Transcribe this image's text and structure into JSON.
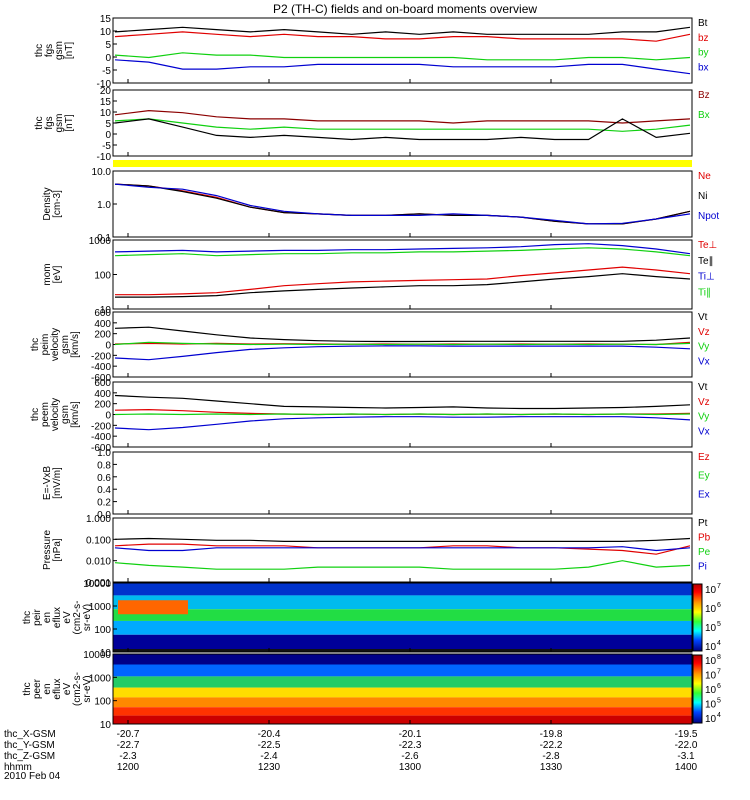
{
  "chart_data": {
    "type": "line",
    "title": "P2 (TH-C) fields and on-board moments overview",
    "x_ticks": [
      "1200",
      "1230",
      "1300",
      "1330",
      "1400"
    ],
    "xlabel_rows": [
      {
        "label": "thc_X-GSM",
        "values": [
          "-20.7",
          "-20.4",
          "-20.1",
          "-19.8",
          "-19.5"
        ]
      },
      {
        "label": "thc_Y-GSM",
        "values": [
          "-22.7",
          "-22.5",
          "-22.3",
          "-22.2",
          "-22.0"
        ]
      },
      {
        "label": "thc_Z-GSM",
        "values": [
          "-2.3",
          "-2.4",
          "-2.6",
          "-2.8",
          "-3.1"
        ]
      },
      {
        "label": "hhmm",
        "values": [
          "1200",
          "1230",
          "1300",
          "1330",
          "1400"
        ]
      }
    ],
    "date_label": "2010 Feb 04",
    "colors": {
      "black": "#000000",
      "red": "#e00000",
      "green": "#10d010",
      "blue": "#0000d0",
      "yellow": "#ffff00",
      "darkred": "#8b0000"
    },
    "panels": [
      {
        "id": "fgs",
        "ylabel": [
          "thc",
          "fgs",
          "gsm",
          "[nT]"
        ],
        "yticks": [
          "15",
          "10",
          "5",
          "0",
          "-5",
          "-10"
        ],
        "series": [
          {
            "name": "Bt",
            "color": "#000000",
            "values": [
              10,
              11,
              12,
              11,
              10,
              11,
              10,
              9,
              10,
              9,
              10,
              9,
              9,
              9,
              9,
              10,
              10,
              12
            ]
          },
          {
            "name": "bz",
            "color": "#e00000",
            "values": [
              8,
              9,
              10,
              9,
              8,
              9,
              8,
              8,
              7,
              7,
              8,
              8,
              7,
              7,
              7,
              7,
              6,
              9
            ]
          },
          {
            "name": "by",
            "color": "#10d010",
            "values": [
              0,
              -1,
              1,
              0,
              0,
              -1,
              -1,
              -1,
              -1,
              -1,
              -1,
              -2,
              -2,
              -2,
              -1,
              -1,
              -2,
              -1
            ]
          },
          {
            "name": "bx",
            "color": "#0000d0",
            "values": [
              -2,
              -3,
              -6,
              -6,
              -5,
              -5,
              -4,
              -4,
              -4,
              -4,
              -5,
              -5,
              -5,
              -5,
              -4,
              -4,
              -6,
              -8
            ]
          }
        ]
      },
      {
        "id": "fgs_gsm",
        "ylabel": [
          "thc",
          "fgs",
          "gsm",
          "[nT]"
        ],
        "yticks": [
          "20",
          "15",
          "10",
          "5",
          "0",
          "-5",
          "-10"
        ],
        "series": [
          {
            "name": "Bz",
            "color": "#8b0000",
            "values": [
              8,
              10,
              9,
              7,
              6,
              6,
              5,
              5,
              5,
              5,
              4,
              5,
              5,
              5,
              5,
              4,
              5,
              6
            ]
          },
          {
            "name": "Bx",
            "color": "#10d010",
            "values": [
              5,
              6,
              4,
              2,
              1,
              2,
              1,
              1,
              1,
              1,
              1,
              1,
              1,
              1,
              1,
              0,
              1,
              3
            ]
          },
          {
            "name": "",
            "color": "#000000",
            "values": [
              4,
              6,
              2,
              -2,
              -3,
              -2,
              -3,
              -4,
              -3,
              -4,
              -4,
              -4,
              -3,
              -4,
              -4,
              6,
              -3,
              -1
            ]
          }
        ]
      },
      {
        "id": "density",
        "ylabel": [
          "Density",
          "[cm-3]"
        ],
        "yticks": [
          "10.0",
          "1.0",
          "0.1"
        ],
        "series": [
          {
            "name": "Ne",
            "color": "#e00000",
            "values": [
              4.0,
              3.5,
              2.5,
              1.6,
              0.8,
              0.55,
              0.5,
              0.45,
              0.45,
              0.5,
              0.45,
              0.45,
              0.4,
              0.3,
              0.25,
              0.25,
              0.35,
              0.6
            ]
          },
          {
            "name": "Ni",
            "color": "#000000",
            "values": [
              4.0,
              3.5,
              2.4,
              1.5,
              0.8,
              0.55,
              0.5,
              0.45,
              0.45,
              0.5,
              0.45,
              0.45,
              0.4,
              0.3,
              0.25,
              0.25,
              0.35,
              0.6
            ]
          },
          {
            "name": "Npot",
            "color": "#0000d0",
            "values": [
              4.0,
              3.2,
              2.8,
              1.8,
              0.9,
              0.6,
              0.5,
              0.45,
              0.45,
              0.45,
              0.5,
              0.45,
              0.4,
              0.32,
              0.25,
              0.26,
              0.35,
              0.5
            ]
          }
        ]
      },
      {
        "id": "mom",
        "ylabel": [
          "mom",
          "[eV]"
        ],
        "yticks": [
          "1000",
          "100",
          "10"
        ],
        "series": [
          {
            "name": "Te⊥",
            "color": "#e00000",
            "values": [
              30,
              30,
              32,
              35,
              45,
              60,
              70,
              80,
              85,
              90,
              95,
              100,
              130,
              160,
              200,
              250,
              200,
              150
            ]
          },
          {
            "name": "Te∥",
            "color": "#000000",
            "values": [
              25,
              25,
              26,
              28,
              35,
              40,
              45,
              50,
              55,
              60,
              60,
              65,
              80,
              100,
              120,
              150,
              120,
              100
            ]
          },
          {
            "name": "Ti⊥",
            "color": "#0000d0",
            "values": [
              800,
              850,
              900,
              800,
              850,
              900,
              900,
              950,
              950,
              1000,
              1050,
              1100,
              1200,
              1400,
              1500,
              1300,
              1000,
              700
            ]
          },
          {
            "name": "Ti∥",
            "color": "#10d010",
            "values": [
              600,
              650,
              700,
              600,
              650,
              700,
              700,
              750,
              750,
              800,
              800,
              850,
              900,
              1000,
              1100,
              1000,
              800,
              600
            ]
          }
        ]
      },
      {
        "id": "peim_vel",
        "ylabel": [
          "thc",
          "peim",
          "velocity",
          "gsm",
          "[km/s]"
        ],
        "yticks": [
          "600",
          "400",
          "200",
          "0",
          "-200",
          "-400",
          "-600"
        ],
        "series": [
          {
            "name": "Vt",
            "color": "#000000",
            "values": [
              300,
              320,
              250,
              180,
              120,
              90,
              70,
              60,
              55,
              55,
              60,
              60,
              60,
              60,
              60,
              60,
              80,
              120
            ]
          },
          {
            "name": "Vz",
            "color": "#e00000",
            "values": [
              10,
              20,
              10,
              20,
              10,
              15,
              10,
              5,
              10,
              5,
              10,
              5,
              10,
              5,
              10,
              5,
              0,
              40
            ]
          },
          {
            "name": "Vy",
            "color": "#10d010",
            "values": [
              0,
              40,
              20,
              10,
              0,
              5,
              0,
              5,
              0,
              5,
              0,
              5,
              0,
              5,
              0,
              5,
              0,
              20
            ]
          },
          {
            "name": "Vx",
            "color": "#0000d0",
            "values": [
              -250,
              -280,
              -220,
              -150,
              -90,
              -60,
              -40,
              -30,
              -25,
              -25,
              -30,
              -30,
              -30,
              -30,
              -30,
              -30,
              -50,
              -80
            ]
          }
        ]
      },
      {
        "id": "peem_vel",
        "ylabel": [
          "thc",
          "peem",
          "velocity",
          "gsm",
          "[km/s]"
        ],
        "yticks": [
          "600",
          "400",
          "200",
          "0",
          "-200",
          "-400",
          "-600"
        ],
        "series": [
          {
            "name": "Vt",
            "color": "#000000",
            "values": [
              350,
              320,
              300,
              250,
              200,
              150,
              140,
              130,
              120,
              130,
              140,
              120,
              110,
              110,
              120,
              130,
              150,
              180
            ]
          },
          {
            "name": "Vz",
            "color": "#e00000",
            "values": [
              80,
              90,
              70,
              40,
              20,
              10,
              0,
              10,
              0,
              10,
              0,
              10,
              0,
              10,
              0,
              10,
              10,
              20
            ]
          },
          {
            "name": "Vy",
            "color": "#10d010",
            "values": [
              0,
              10,
              0,
              10,
              0,
              10,
              0,
              10,
              0,
              10,
              0,
              10,
              0,
              10,
              0,
              10,
              0,
              10
            ]
          },
          {
            "name": "Vx",
            "color": "#0000d0",
            "values": [
              -250,
              -280,
              -240,
              -180,
              -120,
              -80,
              -60,
              -50,
              -40,
              -40,
              -50,
              -50,
              -40,
              -40,
              -40,
              -40,
              -60,
              -100
            ]
          }
        ]
      },
      {
        "id": "efield",
        "ylabel": [
          "E=-VxB",
          "[mV/m]"
        ],
        "yticks": [
          "1.0",
          "0.8",
          "0.6",
          "0.4",
          "0.2",
          "0.0"
        ],
        "series": [
          {
            "name": "Ez",
            "color": "#e00000",
            "values": []
          },
          {
            "name": "Ey",
            "color": "#10d010",
            "values": []
          },
          {
            "name": "Ex",
            "color": "#0000d0",
            "values": []
          }
        ]
      },
      {
        "id": "pressure",
        "ylabel": [
          "Pressure",
          "[nPa]"
        ],
        "yticks": [
          "1.000",
          "0.100",
          "0.010",
          "0.001"
        ],
        "series": [
          {
            "name": "Pt",
            "color": "#000000",
            "values": [
              0.1,
              0.11,
              0.1,
              0.09,
              0.09,
              0.08,
              0.08,
              0.08,
              0.08,
              0.08,
              0.08,
              0.08,
              0.08,
              0.08,
              0.08,
              0.08,
              0.09,
              0.11
            ]
          },
          {
            "name": "Pb",
            "color": "#e00000",
            "values": [
              0.05,
              0.06,
              0.06,
              0.05,
              0.05,
              0.05,
              0.04,
              0.04,
              0.04,
              0.04,
              0.05,
              0.05,
              0.04,
              0.04,
              0.035,
              0.03,
              0.02,
              0.05
            ]
          },
          {
            "name": "Pe",
            "color": "#10d010",
            "values": [
              0.008,
              0.006,
              0.005,
              0.004,
              0.004,
              0.004,
              0.005,
              0.005,
              0.005,
              0.005,
              0.004,
              0.004,
              0.004,
              0.004,
              0.005,
              0.01,
              0.005,
              0.006
            ]
          },
          {
            "name": "Pi",
            "color": "#0000d0",
            "values": [
              0.04,
              0.03,
              0.03,
              0.04,
              0.04,
              0.04,
              0.04,
              0.04,
              0.04,
              0.04,
              0.04,
              0.04,
              0.04,
              0.04,
              0.04,
              0.045,
              0.03,
              0.04
            ]
          }
        ]
      },
      {
        "id": "peir_eflux",
        "ylabel": [
          "thc",
          "peir",
          "en",
          "eflux",
          "eV",
          "(cm2-s-",
          "sr-eV)"
        ],
        "yticks": [
          "10000",
          "1000",
          "100",
          "10"
        ],
        "colorbar_ticks": [
          "10",
          "10",
          "10",
          "10"
        ],
        "colorbar_exps": [
          "7",
          "6",
          "5",
          "4"
        ]
      },
      {
        "id": "peer_eflux",
        "ylabel": [
          "thc",
          "peer",
          "en",
          "eflux",
          "eV",
          "(cm2-s-",
          "sr-eV)"
        ],
        "yticks": [
          "10000",
          "1000",
          "100",
          "10"
        ],
        "colorbar_ticks": [
          "10",
          "10",
          "10",
          "10",
          "10"
        ],
        "colorbar_exps": [
          "8",
          "7",
          "6",
          "5",
          "4"
        ]
      }
    ]
  }
}
